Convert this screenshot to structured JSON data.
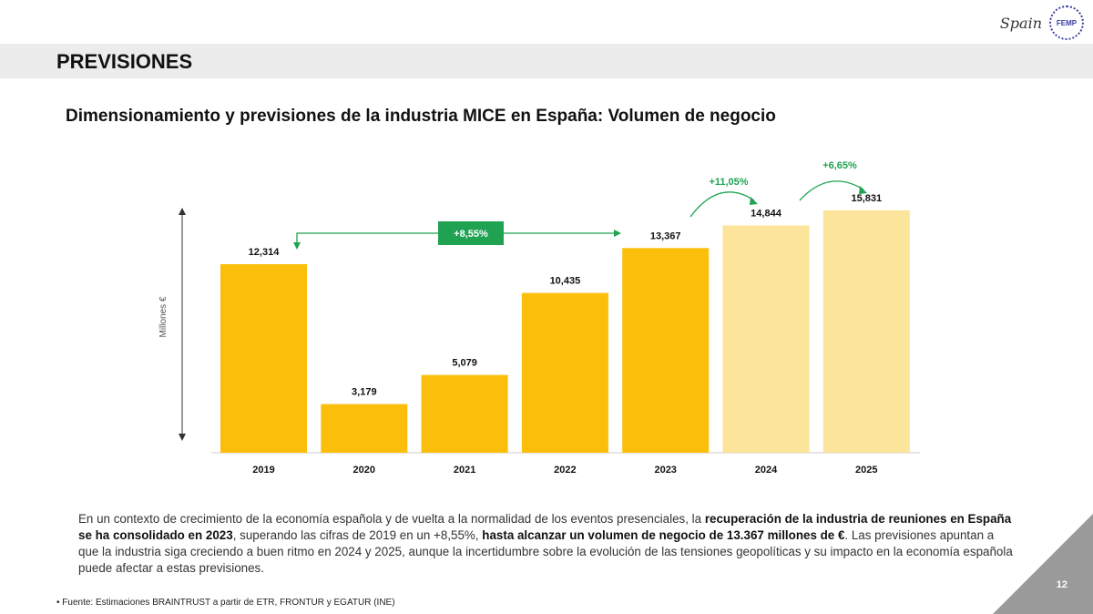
{
  "header": {
    "title": "PREVISIONES",
    "logos": [
      "Spain Convention Bureau",
      "FEMP"
    ],
    "logo_spain": "Spain",
    "logo_femp": "FEMP"
  },
  "chart_data": {
    "type": "bar",
    "title": "Dimensionamiento y previsiones de la industria MICE en España: Volumen de negocio",
    "ylabel": "Millones €",
    "categories": [
      "2019",
      "2020",
      "2021",
      "2022",
      "2023",
      "2024",
      "2025"
    ],
    "values": [
      12314,
      3179,
      5079,
      10435,
      13367,
      14844,
      15831
    ],
    "labels": [
      "12,314",
      "3,179",
      "5,079",
      "10,435",
      "13,367",
      "14,844",
      "15,831"
    ],
    "forecast": [
      false,
      false,
      false,
      false,
      false,
      true,
      true
    ],
    "ylim": [
      0,
      16000
    ],
    "grid": false,
    "colors": {
      "actual": "#FBBF0B",
      "forecast": "#FCE49B",
      "annotation": "#1FA352"
    },
    "annotations": [
      {
        "text": "+8,55%",
        "from": "2019",
        "to": "2023"
      },
      {
        "text": "+11,05%",
        "from": "2023",
        "to": "2024"
      },
      {
        "text": "+6,65%",
        "from": "2024",
        "to": "2025"
      }
    ]
  },
  "body": {
    "p1": "En un contexto de crecimiento de la economía española y de vuelta a la normalidad de los eventos presenciales, la ",
    "b1": "recuperación de la industria de reuniones en España se ha consolidado en 2023",
    "p2": ", superando las cifras de 2019 en un +8,55%, ",
    "b2": "hasta alcanzar un volumen de negocio de 13.367 millones de €",
    "p3": ". Las previsiones apuntan a que la industria siga creciendo a buen ritmo en 2024 y 2025, aunque la incertidumbre sobre la evolución de las tensiones geopolíticas y su impacto en la economía española puede afectar a estas previsiones."
  },
  "footer": {
    "source": "• Fuente: Estimaciones BRAINTRUST a partir de ETR, FRONTUR y EGATUR (INE)",
    "page": "12"
  }
}
